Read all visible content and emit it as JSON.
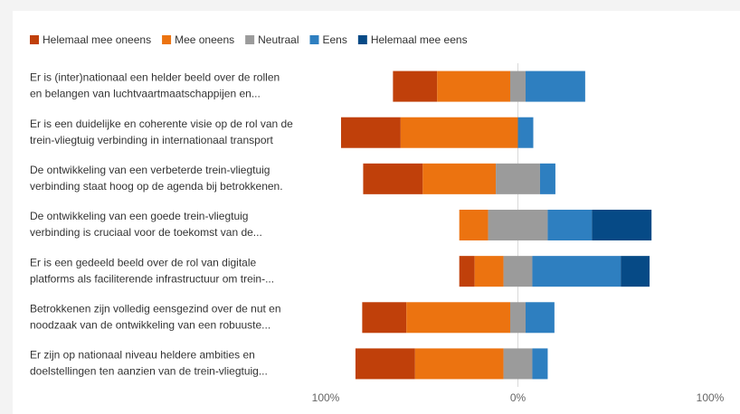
{
  "chart_data": {
    "type": "diverging-bar",
    "categories": [
      [
        "Er is (inter)nationaal een helder beeld over de rollen",
        "en belangen van luchtvaartmaatschappijen en..."
      ],
      [
        "Er is een duidelijke en coherente visie op de rol van de",
        "trein-vliegtuig verbinding in internationaal transport"
      ],
      [
        "De ontwikkeling van een verbeterde trein-vliegtuig",
        "verbinding staat hoog op de agenda bij betrokkenen."
      ],
      [
        "De ontwikkeling van een goede trein-vliegtuig",
        "verbinding is cruciaal voor de toekomst van de..."
      ],
      [
        "Er is een gedeeld beeld over de rol van digitale",
        "platforms als faciliterende infrastructuur om trein-..."
      ],
      [
        "Betrokkenen zijn volledig eensgezind over de nut en",
        "noodzaak van de ontwikkeling van een robuuste..."
      ],
      [
        "Er zijn op nationaal niveau heldere ambities en",
        "doelstellingen ten aanzien van de trein-vliegtuig..."
      ]
    ],
    "series": [
      {
        "name": "Helemaal mee oneens",
        "color": "#c0400a",
        "values": [
          23,
          31,
          31,
          0,
          8,
          23,
          31
        ]
      },
      {
        "name": "Mee oneens",
        "color": "#ec7310",
        "values": [
          38,
          61,
          38,
          15,
          15,
          54,
          46
        ]
      },
      {
        "name": "Neutraal",
        "color": "#9b9b9b",
        "values": [
          8,
          0,
          23,
          31,
          15,
          8,
          15
        ]
      },
      {
        "name": "Eens",
        "color": "#2e7fc0",
        "values": [
          31,
          8,
          8,
          23,
          46,
          15,
          8
        ]
      },
      {
        "name": "Helemaal mee eens",
        "color": "#064a86",
        "values": [
          0,
          0,
          0,
          31,
          15,
          0,
          0
        ]
      }
    ],
    "xlim": [
      -100,
      100
    ],
    "xticks": [
      {
        "value": -100,
        "label": "100%"
      },
      {
        "value": 0,
        "label": "0%"
      },
      {
        "value": 100,
        "label": "100%"
      }
    ]
  }
}
